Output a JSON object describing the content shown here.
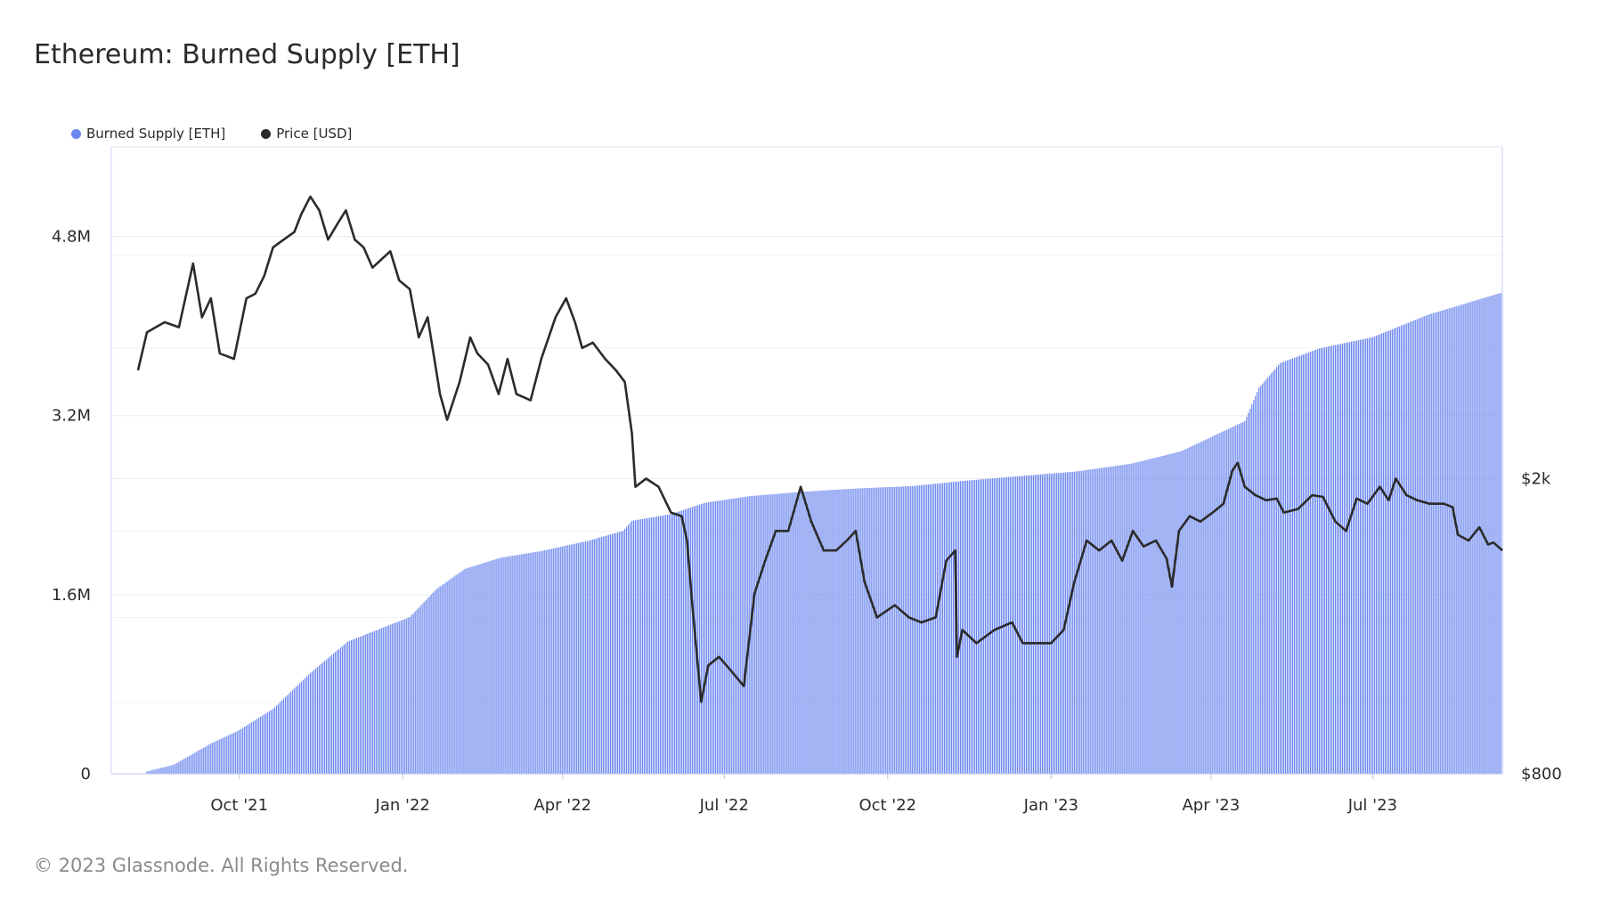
{
  "title": "Ethereum: Burned Supply [ETH]",
  "footer": "© 2023 Glassnode. All Rights Reserved.",
  "colors": {
    "bar": "#6b86ee",
    "price": "#2b2b2b",
    "grid": "#ececec"
  },
  "chart_data": {
    "type": "bar",
    "title": "Ethereum: Burned Supply [ETH]",
    "legend_placement": "top-left",
    "grid": true,
    "x_ticks": [
      "Oct '21",
      "Jan '22",
      "Apr '22",
      "Jul '22",
      "Oct '22",
      "Jan '23",
      "Apr '23",
      "Jul '23"
    ],
    "y_left_ticks": [
      "0",
      "1.6M",
      "3.2M",
      "4.8M"
    ],
    "y_left_ylim": [
      0,
      5600000
    ],
    "y_right_ticks": [
      "$800",
      "$2k"
    ],
    "y_right_scale": "log",
    "y_right_ylim": [
      800,
      5600
    ],
    "x_range": [
      "2021-08-05",
      "2023-09-12"
    ],
    "series": [
      {
        "name": "Burned Supply [ETH]",
        "type": "bar",
        "axis": "left",
        "points": [
          [
            "2021-08-05",
            0
          ],
          [
            "2021-08-25",
            80000
          ],
          [
            "2021-09-15",
            270000
          ],
          [
            "2021-10-01",
            390000
          ],
          [
            "2021-10-20",
            580000
          ],
          [
            "2021-11-10",
            900000
          ],
          [
            "2021-12-01",
            1180000
          ],
          [
            "2021-12-20",
            1300000
          ],
          [
            "2022-01-05",
            1400000
          ],
          [
            "2022-01-20",
            1650000
          ],
          [
            "2022-02-05",
            1830000
          ],
          [
            "2022-02-25",
            1930000
          ],
          [
            "2022-03-20",
            1990000
          ],
          [
            "2022-04-15",
            2080000
          ],
          [
            "2022-05-05",
            2170000
          ],
          [
            "2022-05-10",
            2260000
          ],
          [
            "2022-06-01",
            2320000
          ],
          [
            "2022-06-20",
            2420000
          ],
          [
            "2022-07-15",
            2480000
          ],
          [
            "2022-08-15",
            2520000
          ],
          [
            "2022-09-15",
            2550000
          ],
          [
            "2022-10-15",
            2570000
          ],
          [
            "2022-11-15",
            2620000
          ],
          [
            "2022-12-15",
            2660000
          ],
          [
            "2023-01-15",
            2700000
          ],
          [
            "2023-02-15",
            2770000
          ],
          [
            "2023-03-15",
            2880000
          ],
          [
            "2023-04-20",
            3150000
          ],
          [
            "2023-04-28",
            3450000
          ],
          [
            "2023-05-10",
            3670000
          ],
          [
            "2023-06-01",
            3800000
          ],
          [
            "2023-07-01",
            3900000
          ],
          [
            "2023-08-01",
            4100000
          ],
          [
            "2023-09-12",
            4300000
          ]
        ]
      },
      {
        "name": "Price [USD]",
        "type": "line",
        "axis": "right",
        "points": [
          [
            "2021-08-05",
            2800
          ],
          [
            "2021-08-10",
            3150
          ],
          [
            "2021-08-15",
            3200
          ],
          [
            "2021-08-20",
            3250
          ],
          [
            "2021-08-28",
            3200
          ],
          [
            "2021-09-05",
            3900
          ],
          [
            "2021-09-10",
            3300
          ],
          [
            "2021-09-15",
            3500
          ],
          [
            "2021-09-20",
            2950
          ],
          [
            "2021-09-28",
            2900
          ],
          [
            "2021-10-05",
            3500
          ],
          [
            "2021-10-10",
            3550
          ],
          [
            "2021-10-15",
            3750
          ],
          [
            "2021-10-20",
            4100
          ],
          [
            "2021-10-26",
            4200
          ],
          [
            "2021-11-01",
            4300
          ],
          [
            "2021-11-05",
            4550
          ],
          [
            "2021-11-10",
            4800
          ],
          [
            "2021-11-15",
            4600
          ],
          [
            "2021-11-20",
            4200
          ],
          [
            "2021-11-25",
            4400
          ],
          [
            "2021-11-30",
            4600
          ],
          [
            "2021-12-05",
            4200
          ],
          [
            "2021-12-10",
            4100
          ],
          [
            "2021-12-15",
            3850
          ],
          [
            "2021-12-20",
            3950
          ],
          [
            "2021-12-25",
            4050
          ],
          [
            "2021-12-30",
            3700
          ],
          [
            "2022-01-05",
            3600
          ],
          [
            "2022-01-10",
            3100
          ],
          [
            "2022-01-15",
            3300
          ],
          [
            "2022-01-22",
            2600
          ],
          [
            "2022-01-26",
            2400
          ],
          [
            "2022-02-02",
            2700
          ],
          [
            "2022-02-08",
            3100
          ],
          [
            "2022-02-12",
            2950
          ],
          [
            "2022-02-18",
            2850
          ],
          [
            "2022-02-24",
            2600
          ],
          [
            "2022-03-01",
            2900
          ],
          [
            "2022-03-06",
            2600
          ],
          [
            "2022-03-14",
            2550
          ],
          [
            "2022-03-20",
            2900
          ],
          [
            "2022-03-28",
            3300
          ],
          [
            "2022-04-03",
            3500
          ],
          [
            "2022-04-08",
            3250
          ],
          [
            "2022-04-12",
            3000
          ],
          [
            "2022-04-18",
            3050
          ],
          [
            "2022-04-25",
            2900
          ],
          [
            "2022-05-01",
            2800
          ],
          [
            "2022-05-06",
            2700
          ],
          [
            "2022-05-10",
            2300
          ],
          [
            "2022-05-12",
            1950
          ],
          [
            "2022-05-18",
            2000
          ],
          [
            "2022-05-25",
            1950
          ],
          [
            "2022-06-01",
            1800
          ],
          [
            "2022-06-07",
            1780
          ],
          [
            "2022-06-10",
            1650
          ],
          [
            "2022-06-13",
            1350
          ],
          [
            "2022-06-18",
            1000
          ],
          [
            "2022-06-22",
            1120
          ],
          [
            "2022-06-28",
            1150
          ],
          [
            "2022-07-05",
            1100
          ],
          [
            "2022-07-12",
            1050
          ],
          [
            "2022-07-18",
            1400
          ],
          [
            "2022-07-24",
            1550
          ],
          [
            "2022-07-30",
            1700
          ],
          [
            "2022-08-06",
            1700
          ],
          [
            "2022-08-13",
            1950
          ],
          [
            "2022-08-19",
            1750
          ],
          [
            "2022-08-26",
            1600
          ],
          [
            "2022-09-02",
            1600
          ],
          [
            "2022-09-08",
            1650
          ],
          [
            "2022-09-13",
            1700
          ],
          [
            "2022-09-18",
            1450
          ],
          [
            "2022-09-25",
            1300
          ],
          [
            "2022-10-05",
            1350
          ],
          [
            "2022-10-13",
            1300
          ],
          [
            "2022-10-20",
            1280
          ],
          [
            "2022-10-28",
            1300
          ],
          [
            "2022-11-03",
            1550
          ],
          [
            "2022-11-08",
            1600
          ],
          [
            "2022-11-09",
            1150
          ],
          [
            "2022-11-12",
            1250
          ],
          [
            "2022-11-20",
            1200
          ],
          [
            "2022-11-30",
            1250
          ],
          [
            "2022-12-10",
            1280
          ],
          [
            "2022-12-16",
            1200
          ],
          [
            "2022-12-24",
            1200
          ],
          [
            "2023-01-01",
            1200
          ],
          [
            "2023-01-08",
            1250
          ],
          [
            "2023-01-14",
            1450
          ],
          [
            "2023-01-21",
            1650
          ],
          [
            "2023-01-28",
            1600
          ],
          [
            "2023-02-04",
            1650
          ],
          [
            "2023-02-10",
            1550
          ],
          [
            "2023-02-16",
            1700
          ],
          [
            "2023-02-22",
            1620
          ],
          [
            "2023-03-01",
            1650
          ],
          [
            "2023-03-07",
            1560
          ],
          [
            "2023-03-10",
            1430
          ],
          [
            "2023-03-14",
            1700
          ],
          [
            "2023-03-20",
            1780
          ],
          [
            "2023-03-26",
            1750
          ],
          [
            "2023-04-02",
            1800
          ],
          [
            "2023-04-08",
            1850
          ],
          [
            "2023-04-13",
            2050
          ],
          [
            "2023-04-16",
            2100
          ],
          [
            "2023-04-20",
            1950
          ],
          [
            "2023-04-26",
            1900
          ],
          [
            "2023-05-02",
            1870
          ],
          [
            "2023-05-08",
            1880
          ],
          [
            "2023-05-12",
            1800
          ],
          [
            "2023-05-20",
            1820
          ],
          [
            "2023-05-28",
            1900
          ],
          [
            "2023-06-03",
            1890
          ],
          [
            "2023-06-10",
            1750
          ],
          [
            "2023-06-16",
            1700
          ],
          [
            "2023-06-22",
            1880
          ],
          [
            "2023-06-28",
            1850
          ],
          [
            "2023-07-05",
            1950
          ],
          [
            "2023-07-10",
            1870
          ],
          [
            "2023-07-14",
            2000
          ],
          [
            "2023-07-20",
            1900
          ],
          [
            "2023-07-26",
            1870
          ],
          [
            "2023-08-02",
            1850
          ],
          [
            "2023-08-10",
            1850
          ],
          [
            "2023-08-15",
            1830
          ],
          [
            "2023-08-18",
            1680
          ],
          [
            "2023-08-24",
            1650
          ],
          [
            "2023-08-30",
            1720
          ],
          [
            "2023-09-04",
            1630
          ],
          [
            "2023-09-07",
            1640
          ],
          [
            "2023-09-12",
            1600
          ]
        ]
      }
    ]
  }
}
